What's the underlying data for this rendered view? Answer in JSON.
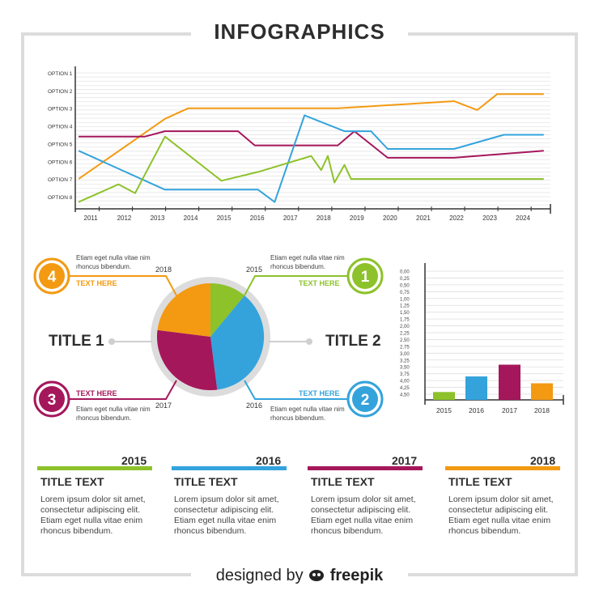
{
  "header": {
    "title": "INFOGRAPHICS"
  },
  "colors": {
    "green": "#8dc22b",
    "blue": "#34a3dc",
    "magenta": "#a5175b",
    "orange": "#f39a12",
    "grid": "#e2e2e2",
    "text": "#2d2d2d"
  },
  "chart_data": [
    {
      "type": "line",
      "x": [
        "2011",
        "2012",
        "2013",
        "2014",
        "2015",
        "2016",
        "2017",
        "2018",
        "2019",
        "2020",
        "2021",
        "2022",
        "2023",
        "2024"
      ],
      "y_categories": [
        "OPTION 1",
        "OPTION 2",
        "OPTION 3",
        "OPTION 4",
        "OPTION 5",
        "OPTION 6",
        "OPTION 7",
        "OPTION 8"
      ],
      "series": [
        {
          "color": "#f39a12",
          "points": [
            [
              2010.6,
              7.0
            ],
            [
              2013.2,
              3.6
            ],
            [
              2013.9,
              3.0
            ],
            [
              2018.4,
              3.0
            ],
            [
              2020.2,
              2.8
            ],
            [
              2021.9,
              2.6
            ],
            [
              2022.6,
              3.1
            ],
            [
              2023.2,
              2.2
            ],
            [
              2024.6,
              2.2
            ]
          ]
        },
        {
          "color": "#a5175b",
          "points": [
            [
              2010.6,
              4.6
            ],
            [
              2012.6,
              4.6
            ],
            [
              2013.2,
              4.3
            ],
            [
              2015.4,
              4.3
            ],
            [
              2015.9,
              5.1
            ],
            [
              2018.4,
              5.1
            ],
            [
              2018.9,
              4.3
            ],
            [
              2019.9,
              5.8
            ],
            [
              2021.9,
              5.8
            ],
            [
              2024.6,
              5.4
            ]
          ]
        },
        {
          "color": "#34a3dc",
          "points": [
            [
              2010.6,
              5.4
            ],
            [
              2013.2,
              7.6
            ],
            [
              2016.0,
              7.6
            ],
            [
              2016.5,
              8.3
            ],
            [
              2017.4,
              3.4
            ],
            [
              2018.6,
              4.3
            ],
            [
              2019.4,
              4.3
            ],
            [
              2019.9,
              5.3
            ],
            [
              2021.9,
              5.3
            ],
            [
              2023.4,
              4.5
            ],
            [
              2024.6,
              4.5
            ]
          ]
        },
        {
          "color": "#8dc22b",
          "points": [
            [
              2010.6,
              8.3
            ],
            [
              2011.8,
              7.3
            ],
            [
              2012.3,
              7.8
            ],
            [
              2013.2,
              4.6
            ],
            [
              2014.9,
              7.1
            ],
            [
              2016.0,
              6.6
            ],
            [
              2017.6,
              5.7
            ],
            [
              2017.9,
              6.5
            ],
            [
              2018.1,
              5.7
            ],
            [
              2018.3,
              7.2
            ],
            [
              2018.6,
              6.2
            ],
            [
              2018.8,
              7.0
            ],
            [
              2024.6,
              7.0
            ]
          ]
        }
      ]
    },
    {
      "type": "pie",
      "labels": [
        "2015",
        "2016",
        "2017",
        "2018"
      ],
      "values": [
        11,
        37,
        29,
        23
      ],
      "colors": [
        "#8dc22b",
        "#34a3dc",
        "#a5175b",
        "#f39a12"
      ]
    },
    {
      "type": "bar",
      "categories": [
        "2015",
        "2016",
        "2017",
        "2018"
      ],
      "values": [
        4.42,
        3.85,
        3.42,
        4.1
      ],
      "colors": [
        "#8dc22b",
        "#34a3dc",
        "#a5175b",
        "#f39a12"
      ],
      "ticks": [
        "0,00",
        "0,25",
        "0,50",
        "0,75",
        "1,00",
        "1,25",
        "1,50",
        "1,75",
        "2,00",
        "2,25",
        "2,50",
        "2,75",
        "3,00",
        "3,25",
        "3,50",
        "3,75",
        "4,00",
        "4,25",
        "4,50"
      ],
      "ylim": [
        0,
        4.5
      ],
      "inverted": true
    }
  ],
  "callouts": [
    {
      "num": "4",
      "year": "2018",
      "text": "Etiam eget nulla vitae nim rhoncus bibendum.",
      "heading": "TEXT HERE",
      "color": "#f39a12"
    },
    {
      "num": "1",
      "year": "2015",
      "text": "Etiam eget nulla vitae nim rhoncus bibendum.",
      "heading": "TEXT HERE",
      "color": "#8dc22b"
    },
    {
      "num": "3",
      "year": "2017",
      "text": "Etiam eget nulla vitae nim rhoncus bibendum.",
      "heading": "TEXT HERE",
      "color": "#a5175b"
    },
    {
      "num": "2",
      "year": "2016",
      "text": "Etiam eget nulla vitae nim rhoncus bibendum.",
      "heading": "TEXT HERE",
      "color": "#34a3dc"
    }
  ],
  "titles": {
    "left": "TITLE 1",
    "right": "TITLE 2"
  },
  "columns": [
    {
      "year": "2015",
      "title": "TITLE TEXT",
      "body": "Lorem ipsum dolor sit amet, consectetur adipiscing elit. Etiam eget nulla vitae enim rhoncus bibendum.",
      "color": "#8dc22b"
    },
    {
      "year": "2016",
      "title": "TITLE TEXT",
      "body": "Lorem ipsum dolor sit amet, consectetur adipiscing elit. Etiam eget nulla vitae enim rhoncus bibendum.",
      "color": "#34a3dc"
    },
    {
      "year": "2017",
      "title": "TITLE TEXT",
      "body": "Lorem ipsum dolor sit amet, consectetur adipiscing elit. Etiam eget nulla vitae enim rhoncus bibendum.",
      "color": "#a5175b"
    },
    {
      "year": "2018",
      "title": "TITLE TEXT",
      "body": "Lorem ipsum dolor sit amet, consectetur adipiscing elit. Etiam eget nulla vitae enim rhoncus bibendum.",
      "color": "#f39a12"
    }
  ],
  "credit": {
    "prefix": "designed by",
    "brand": "freepik"
  }
}
